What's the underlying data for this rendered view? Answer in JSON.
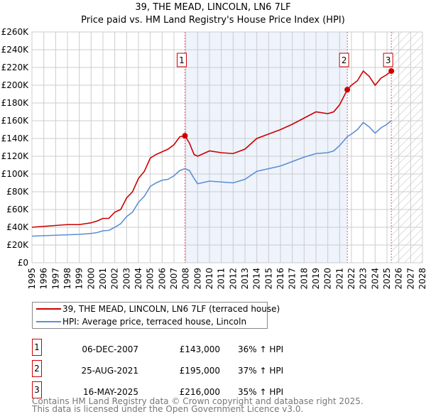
{
  "chart_data": {
    "type": "line",
    "title": "39, THE MEAD, LINCOLN, LN6 7LF",
    "subtitle": "Price paid vs. HM Land Registry's House Price Index (HPI)",
    "xlim": [
      1995,
      2028
    ],
    "ylim": [
      0,
      260000
    ],
    "x_ticks": [
      "1995",
      "1996",
      "1997",
      "1998",
      "1999",
      "2000",
      "2001",
      "2002",
      "2003",
      "2004",
      "2005",
      "2006",
      "2007",
      "2008",
      "2009",
      "2010",
      "2011",
      "2012",
      "2013",
      "2014",
      "2015",
      "2016",
      "2017",
      "2018",
      "2019",
      "2020",
      "2021",
      "2022",
      "2023",
      "2024",
      "2025",
      "2026",
      "2027",
      "2028"
    ],
    "y_ticks": [
      "£0",
      "£20K",
      "£40K",
      "£60K",
      "£80K",
      "£100K",
      "£120K",
      "£140K",
      "£160K",
      "£180K",
      "£200K",
      "£220K",
      "£240K",
      "£260K"
    ],
    "grid": true,
    "series": [
      {
        "name": "39, THE MEAD, LINCOLN, LN6 7LF (terraced house)",
        "color": "#cc0000",
        "x": [
          1995,
          1996,
          1997,
          1998,
          1999,
          2000,
          2000.5,
          2001,
          2001.5,
          2002,
          2002.5,
          2003,
          2003.5,
          2004,
          2004.5,
          2005,
          2005.5,
          2006,
          2006.5,
          2007,
          2007.5,
          2007.93,
          2008.3,
          2008.7,
          2009,
          2010,
          2011,
          2012,
          2013,
          2014,
          2015,
          2016,
          2017,
          2018,
          2019,
          2020,
          2020.5,
          2021,
          2021.65,
          2022,
          2022.5,
          2023,
          2023.5,
          2024,
          2024.5,
          2025,
          2025.37
        ],
        "y": [
          40000,
          41000,
          42000,
          43000,
          43000,
          45000,
          47000,
          50000,
          50000,
          57000,
          60000,
          73000,
          80000,
          95000,
          103000,
          118000,
          122000,
          125000,
          128000,
          133000,
          142000,
          143000,
          135000,
          122000,
          120000,
          126000,
          124000,
          123000,
          128000,
          140000,
          145000,
          150000,
          156000,
          163000,
          170000,
          168000,
          170000,
          178000,
          195000,
          200000,
          205000,
          216000,
          210000,
          200000,
          208000,
          212000,
          216000
        ]
      },
      {
        "name": "HPI: Average price, terraced house, Lincoln",
        "color": "#5b8fd4",
        "x": [
          1995,
          1996,
          1997,
          1998,
          1999,
          2000,
          2000.5,
          2001,
          2001.5,
          2002,
          2002.5,
          2003,
          2003.5,
          2004,
          2004.5,
          2005,
          2005.5,
          2006,
          2006.5,
          2007,
          2007.5,
          2007.93,
          2008.3,
          2008.7,
          2009,
          2010,
          2011,
          2012,
          2013,
          2014,
          2015,
          2016,
          2017,
          2018,
          2019,
          2020,
          2020.5,
          2021,
          2021.65,
          2022,
          2022.5,
          2023,
          2023.5,
          2024,
          2024.5,
          2025,
          2025.37
        ],
        "y": [
          30000,
          30500,
          31000,
          31500,
          32000,
          33000,
          34000,
          36000,
          36500,
          40000,
          44000,
          52000,
          57000,
          68000,
          75000,
          86000,
          90000,
          93000,
          94000,
          98000,
          104000,
          106000,
          104000,
          95000,
          89000,
          92000,
          91000,
          90000,
          94000,
          103000,
          106000,
          109000,
          114000,
          119000,
          123000,
          124000,
          126000,
          132000,
          142000,
          145000,
          150000,
          158000,
          153000,
          146000,
          152000,
          156000,
          160000
        ]
      }
    ],
    "sales": [
      {
        "label": "1",
        "x": 2007.93,
        "y": 143000,
        "date": "06-DEC-2007",
        "price": "£143,000",
        "hpi": "36% ↑ HPI"
      },
      {
        "label": "2",
        "x": 2021.65,
        "y": 195000,
        "date": "25-AUG-2021",
        "price": "£195,000",
        "hpi": "37% ↑ HPI"
      },
      {
        "label": "3",
        "x": 2025.37,
        "y": 216000,
        "date": "16-MAY-2025",
        "price": "£216,000",
        "hpi": "35% ↑ HPI"
      }
    ],
    "shaded_range": [
      2007.93,
      2021.65
    ],
    "hatched_from": 2025.37
  },
  "legend": {
    "items": [
      "39, THE MEAD, LINCOLN, LN6 7LF (terraced house)",
      "HPI: Average price, terraced house, Lincoln"
    ]
  },
  "footer": {
    "line1": "Contains HM Land Registry data © Crown copyright and database right 2025.",
    "line2": "This data is licensed under the Open Government Licence v3.0."
  }
}
